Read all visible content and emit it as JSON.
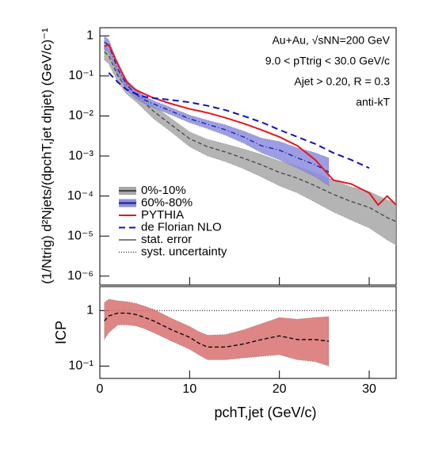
{
  "chart_data": [
    {
      "type": "line",
      "log_y": true,
      "ylabel": "(1/Ntrig) d²Njets/(dpchT,jet dηjet)  (GeV/c)⁻¹",
      "annotations": [
        "Au+Au, √sNN=200 GeV",
        "9.0 < pTtrig < 30.0 GeV/c",
        "Ajet > 0.20, R = 0.3",
        "anti-kT"
      ],
      "legend_extra": [
        "stat. error",
        "syst. uncertainty"
      ],
      "xlim": [
        0,
        33
      ],
      "xticks": [
        0,
        10,
        20,
        30
      ],
      "ylim": [
        6e-07,
        1.6
      ],
      "yticks": [
        {
          "value": 1e-06,
          "label": "10⁻⁶"
        },
        {
          "value": 1e-05,
          "label": "10⁻⁵"
        },
        {
          "value": 0.0001,
          "label": "10⁻⁴"
        },
        {
          "value": 0.001,
          "label": "10⁻³"
        },
        {
          "value": 0.01,
          "label": "10⁻²"
        },
        {
          "value": 0.1,
          "label": "10⁻¹"
        },
        1
      ],
      "series": [
        {
          "name": "0%-10%",
          "color": "#444444",
          "band_color": "#a8a8a8",
          "x": [
            0.5,
            1,
            2,
            3,
            4,
            5,
            6,
            8,
            10,
            12,
            14,
            16,
            18,
            20,
            22,
            24,
            26,
            28,
            30,
            32,
            33
          ],
          "values": [
            0.4,
            0.32,
            0.1,
            0.05,
            0.033,
            0.021,
            0.013,
            0.0059,
            0.0027,
            0.0017,
            0.00126,
            0.00088,
            0.0006,
            0.00039,
            0.00028,
            0.00018,
            0.00011,
            7.3e-05,
            5.2e-05,
            2.9e-05,
            2.3e-05
          ],
          "syst_high": [
            0.6,
            0.45,
            0.14,
            0.07,
            0.045,
            0.029,
            0.018,
            0.0085,
            0.004,
            0.0026,
            0.002,
            0.0015,
            0.0011,
            0.00075,
            0.00056,
            0.00038,
            0.00025,
            0.00017,
            0.00013,
            8e-05,
            7e-05
          ],
          "syst_low": [
            0.25,
            0.2,
            0.07,
            0.035,
            0.023,
            0.014,
            0.0085,
            0.0039,
            0.0017,
            0.001,
            0.00072,
            0.00048,
            0.0003,
            0.00018,
            0.00012,
            7e-05,
            4e-05,
            2.5e-05,
            1.6e-05,
            8e-06,
            6e-06
          ]
        },
        {
          "name": "60%-80%",
          "color": "#1a1a99",
          "band_color": "#8c8ce0",
          "x": [
            0.5,
            1,
            2,
            3,
            4,
            5,
            6,
            8,
            10,
            12,
            14,
            16,
            18,
            20,
            22,
            24,
            25.5
          ],
          "values": [
            0.7,
            0.58,
            0.15,
            0.06,
            0.035,
            0.025,
            0.02,
            0.013,
            0.0085,
            0.0062,
            0.0045,
            0.003,
            0.0018,
            0.0014,
            0.0009,
            0.0006,
            0.0004
          ],
          "syst_high": [
            1.0,
            0.8,
            0.2,
            0.08,
            0.045,
            0.031,
            0.024,
            0.016,
            0.0105,
            0.0078,
            0.006,
            0.0042,
            0.0028,
            0.0023,
            0.0016,
            0.0012,
            0.0009
          ],
          "syst_low": [
            0.45,
            0.4,
            0.11,
            0.045,
            0.027,
            0.02,
            0.016,
            0.0105,
            0.0068,
            0.0048,
            0.0033,
            0.0021,
            0.0012,
            0.0008,
            0.0005,
            0.0003,
            0.00018
          ]
        },
        {
          "name": "PYTHIA",
          "color": "#e8141c",
          "x": [
            0.5,
            1,
            2,
            3,
            4,
            5,
            6,
            8,
            10,
            12,
            14,
            16,
            18,
            20,
            22,
            24,
            26,
            28,
            30,
            31,
            32,
            33
          ],
          "values": [
            0.55,
            0.6,
            0.2,
            0.07,
            0.045,
            0.035,
            0.028,
            0.02,
            0.015,
            0.012,
            0.009,
            0.0065,
            0.0045,
            0.003,
            0.0018,
            0.0008,
            0.00025,
            0.0002,
            0.00012,
            6e-05,
            0.0001,
            6e-05
          ]
        },
        {
          "name": "de Florian NLO",
          "color": "#1010c8",
          "dash": "8,5",
          "x": [
            1,
            2,
            3,
            4,
            5,
            6,
            8,
            10,
            12,
            14,
            16,
            18,
            20,
            22,
            24,
            26,
            28,
            30
          ],
          "values": [
            0.12,
            0.07,
            0.045,
            0.036,
            0.03,
            0.028,
            0.025,
            0.022,
            0.018,
            0.014,
            0.01,
            0.007,
            0.0045,
            0.003,
            0.002,
            0.0012,
            0.0008,
            0.0005
          ]
        }
      ]
    },
    {
      "type": "line",
      "log_y": true,
      "xlabel": "pchT,jet  (GeV/c)",
      "ylabel": "ICP",
      "xlim": [
        0,
        33
      ],
      "xticks": [
        0,
        10,
        20,
        30
      ],
      "ylim": [
        0.06,
        2.7
      ],
      "yticks": [
        {
          "value": 0.1,
          "label": "10⁻¹"
        },
        1
      ],
      "reference": 1,
      "series": [
        {
          "color": "#000000",
          "band_color": "#d97070",
          "stat_color": "#f2a0a0",
          "x": [
            0.5,
            1,
            2,
            3,
            4,
            5,
            6,
            8,
            10,
            11,
            12,
            14,
            16,
            18,
            20,
            22,
            24,
            25.5
          ],
          "values": [
            0.65,
            0.8,
            0.9,
            0.9,
            0.85,
            0.75,
            0.65,
            0.45,
            0.33,
            0.26,
            0.22,
            0.22,
            0.25,
            0.3,
            0.35,
            0.3,
            0.3,
            0.28
          ],
          "syst_high": [
            1.4,
            1.6,
            1.5,
            1.45,
            1.35,
            1.2,
            1.05,
            0.72,
            0.52,
            0.42,
            0.36,
            0.37,
            0.45,
            0.58,
            0.75,
            0.7,
            0.75,
            0.78
          ],
          "syst_low": [
            0.3,
            0.4,
            0.55,
            0.55,
            0.53,
            0.47,
            0.4,
            0.28,
            0.2,
            0.16,
            0.13,
            0.13,
            0.14,
            0.15,
            0.16,
            0.13,
            0.12,
            0.1
          ]
        }
      ]
    }
  ]
}
